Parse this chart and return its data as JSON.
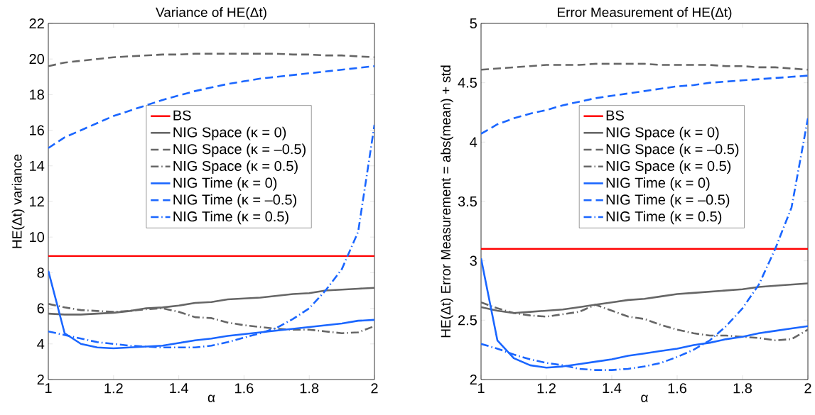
{
  "chart_data": [
    {
      "type": "line",
      "title": "Variance of HE(Δt)",
      "xlabel": "α",
      "ylabel": "HE(Δt) variance",
      "x": [
        1,
        1.05,
        1.1,
        1.15,
        1.2,
        1.25,
        1.3,
        1.35,
        1.4,
        1.45,
        1.5,
        1.55,
        1.6,
        1.65,
        1.7,
        1.75,
        1.8,
        1.85,
        1.9,
        1.95,
        2
      ],
      "xlim": [
        1,
        2
      ],
      "xticks": [
        1,
        1.2,
        1.4,
        1.6,
        1.8,
        2
      ],
      "ylim": [
        2,
        22
      ],
      "yticks": [
        2,
        4,
        6,
        8,
        10,
        12,
        14,
        16,
        18,
        20,
        22
      ],
      "grid": false,
      "legend": "center",
      "series": [
        {
          "name": "BS",
          "color": "#ff0000",
          "line_style": "solid",
          "values": [
            8.93,
            8.93,
            8.93,
            8.93,
            8.93,
            8.93,
            8.93,
            8.93,
            8.93,
            8.93,
            8.93,
            8.93,
            8.93,
            8.93,
            8.93,
            8.93,
            8.93,
            8.93,
            8.93,
            8.93,
            8.93
          ]
        },
        {
          "name": "NIG Space (κ = 0)",
          "color": "#666666",
          "line_style": "solid",
          "values": [
            5.7,
            5.65,
            5.65,
            5.7,
            5.75,
            5.85,
            6.0,
            6.05,
            6.15,
            6.3,
            6.35,
            6.5,
            6.55,
            6.6,
            6.7,
            6.8,
            6.85,
            7.0,
            7.05,
            7.1,
            7.15
          ]
        },
        {
          "name": "NIG Space (κ = –0.5)",
          "color": "#666666",
          "line_style": "dashed",
          "values": [
            19.6,
            19.8,
            19.9,
            20.0,
            20.1,
            20.15,
            20.2,
            20.25,
            20.25,
            20.3,
            20.3,
            20.3,
            20.3,
            20.3,
            20.3,
            20.25,
            20.25,
            20.2,
            20.2,
            20.15,
            20.1
          ]
        },
        {
          "name": "NIG Space (κ = 0.5)",
          "color": "#666666",
          "line_style": "dashdot",
          "values": [
            6.25,
            6.05,
            5.9,
            5.85,
            5.8,
            5.85,
            5.95,
            6.0,
            5.8,
            5.5,
            5.45,
            5.2,
            5.05,
            4.95,
            4.85,
            4.8,
            4.8,
            4.7,
            4.6,
            4.65,
            5.0
          ]
        },
        {
          "name": "NIG Time (κ = 0)",
          "color": "#1a66ff",
          "line_style": "solid",
          "values": [
            8.1,
            4.6,
            4.0,
            3.8,
            3.75,
            3.8,
            3.85,
            3.9,
            4.05,
            4.2,
            4.3,
            4.45,
            4.55,
            4.65,
            4.75,
            4.85,
            4.95,
            5.05,
            5.15,
            5.3,
            5.35
          ]
        },
        {
          "name": "NIG Time (κ = –0.5)",
          "color": "#1a66ff",
          "line_style": "dashed",
          "values": [
            15.0,
            15.6,
            16.0,
            16.4,
            16.8,
            17.1,
            17.4,
            17.7,
            17.95,
            18.2,
            18.4,
            18.6,
            18.75,
            18.9,
            19.0,
            19.1,
            19.2,
            19.3,
            19.4,
            19.5,
            19.6
          ]
        },
        {
          "name": "NIG Time (κ = 0.5)",
          "color": "#1a66ff",
          "line_style": "dashdot",
          "values": [
            4.7,
            4.5,
            4.3,
            4.1,
            4.0,
            3.9,
            3.85,
            3.8,
            3.8,
            3.8,
            3.9,
            4.1,
            4.35,
            4.6,
            4.9,
            5.4,
            6.0,
            7.0,
            8.2,
            10.3,
            16.3
          ]
        }
      ]
    },
    {
      "type": "line",
      "title": "Error Measurement of HE(Δt)",
      "xlabel": "α",
      "ylabel": "HE(Δt) Error Measurement = abs(mean) + std",
      "x": [
        1,
        1.05,
        1.1,
        1.15,
        1.2,
        1.25,
        1.3,
        1.35,
        1.4,
        1.45,
        1.5,
        1.55,
        1.6,
        1.65,
        1.7,
        1.75,
        1.8,
        1.85,
        1.9,
        1.95,
        2
      ],
      "xlim": [
        1,
        2
      ],
      "xticks": [
        1,
        1.2,
        1.4,
        1.6,
        1.8,
        2
      ],
      "ylim": [
        2,
        5
      ],
      "yticks": [
        2,
        2.5,
        3,
        3.5,
        4,
        4.5,
        5
      ],
      "grid": false,
      "legend": "center",
      "series": [
        {
          "name": "BS",
          "color": "#ff0000",
          "line_style": "solid",
          "values": [
            3.1,
            3.1,
            3.1,
            3.1,
            3.1,
            3.1,
            3.1,
            3.1,
            3.1,
            3.1,
            3.1,
            3.1,
            3.1,
            3.1,
            3.1,
            3.1,
            3.1,
            3.1,
            3.1,
            3.1,
            3.1
          ]
        },
        {
          "name": "NIG Space (κ = 0)",
          "color": "#666666",
          "line_style": "solid",
          "values": [
            2.61,
            2.58,
            2.56,
            2.57,
            2.58,
            2.59,
            2.61,
            2.63,
            2.65,
            2.67,
            2.68,
            2.7,
            2.72,
            2.73,
            2.74,
            2.75,
            2.76,
            2.78,
            2.79,
            2.8,
            2.81
          ]
        },
        {
          "name": "NIG Space (κ = –0.5)",
          "color": "#666666",
          "line_style": "dashed",
          "values": [
            4.61,
            4.62,
            4.63,
            4.64,
            4.65,
            4.65,
            4.65,
            4.66,
            4.66,
            4.66,
            4.66,
            4.65,
            4.65,
            4.65,
            4.65,
            4.64,
            4.64,
            4.63,
            4.63,
            4.62,
            4.61
          ]
        },
        {
          "name": "NIG Space (κ = 0.5)",
          "color": "#666666",
          "line_style": "dashdot",
          "values": [
            2.65,
            2.6,
            2.56,
            2.54,
            2.53,
            2.55,
            2.57,
            2.63,
            2.58,
            2.53,
            2.51,
            2.46,
            2.42,
            2.39,
            2.37,
            2.37,
            2.36,
            2.35,
            2.33,
            2.34,
            2.42
          ]
        },
        {
          "name": "NIG Time (κ = 0)",
          "color": "#1a66ff",
          "line_style": "solid",
          "values": [
            3.02,
            2.33,
            2.18,
            2.12,
            2.1,
            2.11,
            2.13,
            2.15,
            2.17,
            2.2,
            2.22,
            2.24,
            2.26,
            2.29,
            2.31,
            2.34,
            2.36,
            2.39,
            2.41,
            2.43,
            2.45
          ]
        },
        {
          "name": "NIG Time (κ = –0.5)",
          "color": "#1a66ff",
          "line_style": "dashed",
          "values": [
            4.07,
            4.15,
            4.2,
            4.24,
            4.27,
            4.31,
            4.34,
            4.37,
            4.39,
            4.41,
            4.43,
            4.45,
            4.47,
            4.48,
            4.5,
            4.51,
            4.52,
            4.53,
            4.54,
            4.55,
            4.56
          ]
        },
        {
          "name": "NIG Time (κ = 0.5)",
          "color": "#1a66ff",
          "line_style": "dashdot",
          "values": [
            2.3,
            2.26,
            2.21,
            2.17,
            2.14,
            2.12,
            2.09,
            2.08,
            2.08,
            2.09,
            2.11,
            2.14,
            2.19,
            2.25,
            2.33,
            2.45,
            2.6,
            2.8,
            3.1,
            3.45,
            4.2
          ]
        }
      ]
    }
  ]
}
